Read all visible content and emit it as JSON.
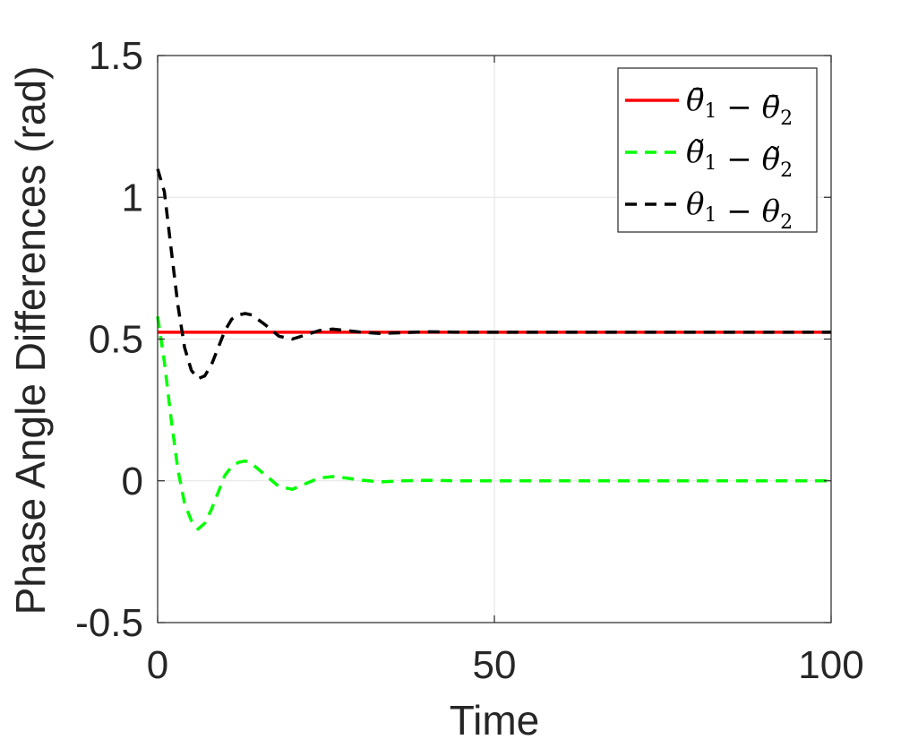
{
  "chart_data": {
    "type": "line",
    "title": "",
    "xlabel": "Time",
    "ylabel": "Phase Angle Differences (rad)",
    "xlim": [
      0,
      100
    ],
    "ylim": [
      -0.5,
      1.5
    ],
    "xticks": [
      0,
      50,
      100
    ],
    "yticks": [
      -0.5,
      0,
      0.5,
      1,
      1.5
    ],
    "xtick_labels": [
      "0",
      "50",
      "100"
    ],
    "ytick_labels": [
      "-0.5",
      "0",
      "0.5",
      "1",
      "1.5"
    ],
    "grid": true,
    "legend_position": "top-right",
    "series": [
      {
        "name": "θ̄1 − θ̄2",
        "legend": {
          "sym": "θ̄",
          "sub1": "1",
          "sub2": "2"
        },
        "color": "#ff0000",
        "style": "solid",
        "x": [
          0,
          100
        ],
        "y": [
          0.524,
          0.524
        ]
      },
      {
        "name": "θ̃1 − θ̃2",
        "legend": {
          "sym": "θ̃",
          "sub1": "1",
          "sub2": "2"
        },
        "color": "#00ff00",
        "style": "dashed",
        "x": [
          0,
          1,
          2,
          3,
          4,
          5,
          6,
          7,
          8,
          9,
          10,
          11,
          12,
          13,
          14,
          16,
          18,
          20,
          22,
          24,
          26,
          28,
          30,
          33,
          36,
          40,
          45,
          50,
          60,
          70,
          80,
          90,
          100
        ],
        "y": [
          0.58,
          0.42,
          0.22,
          0.04,
          -0.08,
          -0.14,
          -0.17,
          -0.15,
          -0.1,
          -0.04,
          0.02,
          0.05,
          0.065,
          0.07,
          0.06,
          0.02,
          -0.02,
          -0.03,
          -0.01,
          0.01,
          0.015,
          0.01,
          0.003,
          -0.004,
          0.0,
          0.002,
          0.0,
          0.0,
          0.0,
          0.0,
          0.0,
          0.0,
          0.0
        ]
      },
      {
        "name": "θ1 − θ2",
        "legend": {
          "sym": "θ",
          "sub1": "1",
          "sub2": "2"
        },
        "color": "#000000",
        "style": "dashed",
        "x": [
          0,
          1,
          2,
          3,
          4,
          5,
          6,
          7,
          8,
          9,
          10,
          11,
          12,
          13,
          14,
          16,
          18,
          20,
          22,
          24,
          26,
          28,
          30,
          33,
          36,
          40,
          45,
          50,
          60,
          70,
          80,
          90,
          100
        ],
        "y": [
          1.1,
          1.02,
          0.82,
          0.62,
          0.47,
          0.39,
          0.36,
          0.37,
          0.41,
          0.47,
          0.53,
          0.57,
          0.585,
          0.59,
          0.585,
          0.55,
          0.51,
          0.5,
          0.515,
          0.53,
          0.535,
          0.53,
          0.525,
          0.52,
          0.522,
          0.526,
          0.524,
          0.524,
          0.524,
          0.524,
          0.524,
          0.524,
          0.524
        ]
      }
    ]
  }
}
